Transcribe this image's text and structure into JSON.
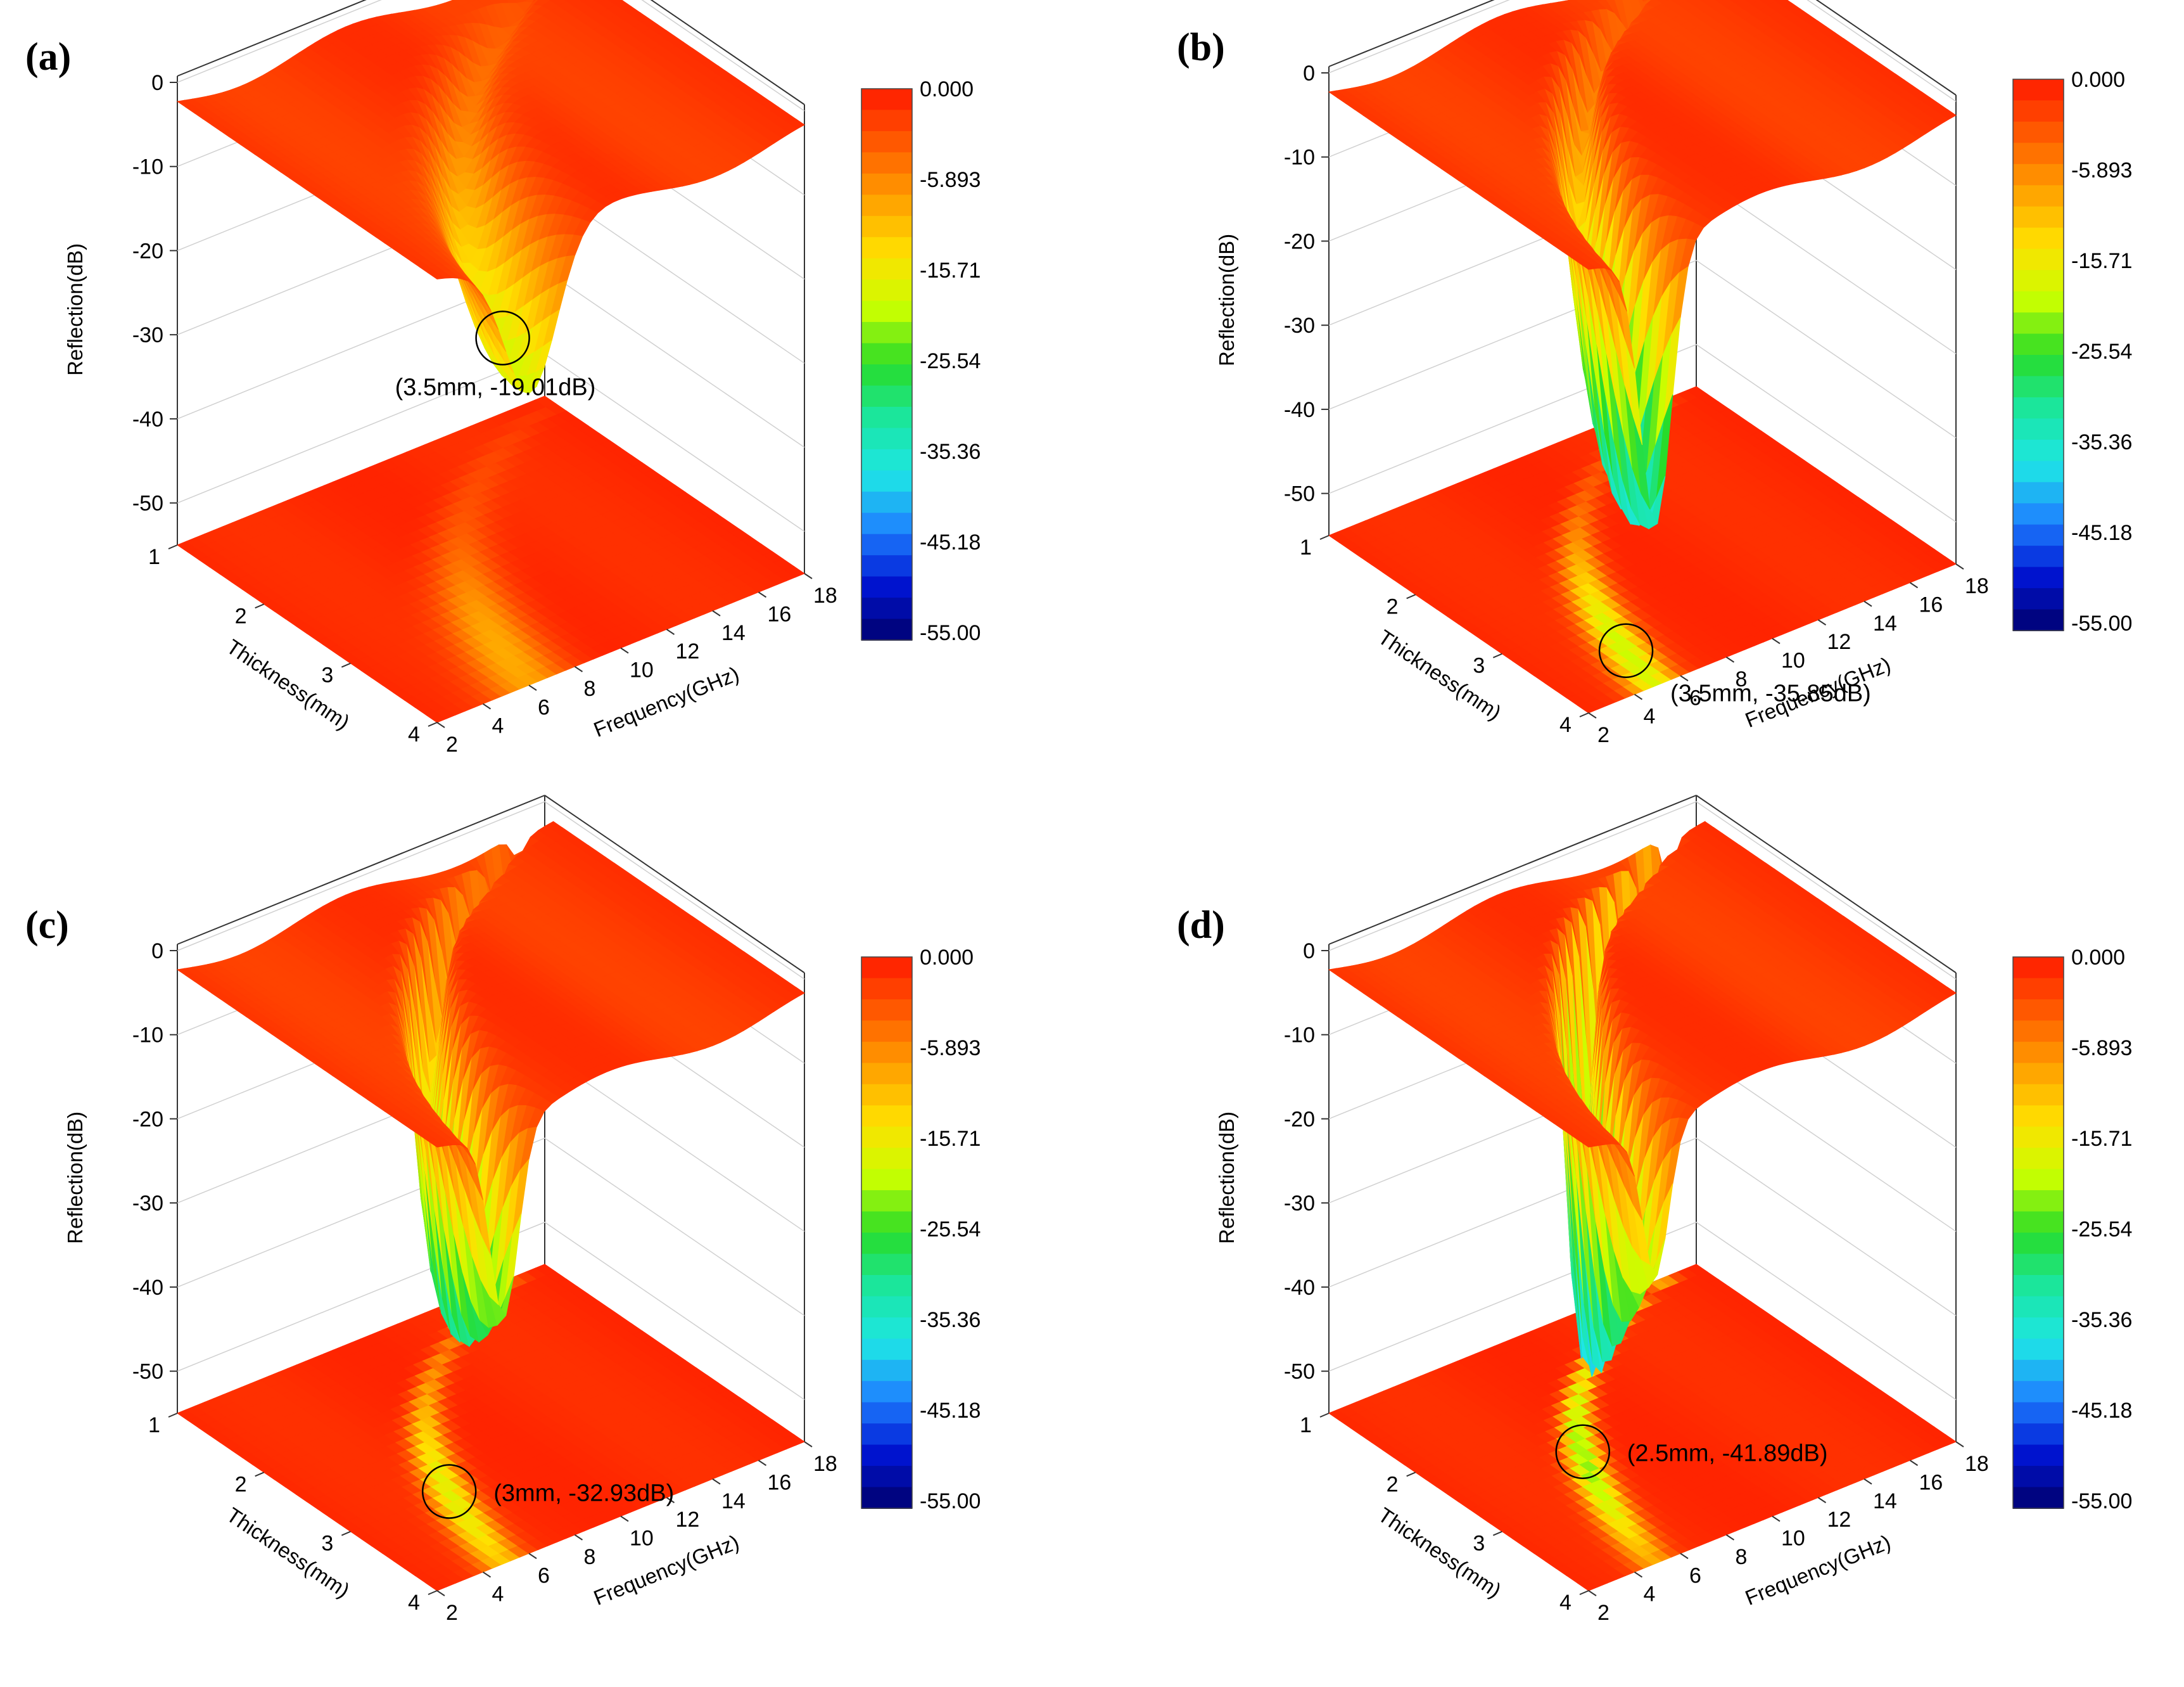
{
  "figure": {
    "panels": [
      {
        "label": "(a)",
        "annotation": "(3.5mm, -19.01dB)",
        "valley_thickness": 3.5,
        "valley_min_db": -19.01,
        "valley_spread": 1.0,
        "secondary_dip": false
      },
      {
        "label": "(b)",
        "annotation": "(3.5mm, -35.85dB)",
        "valley_thickness": 3.5,
        "valley_min_db": -35.85,
        "valley_spread": 0.6,
        "secondary_dip": true
      },
      {
        "label": "(c)",
        "annotation": "(3mm, -32.93dB)",
        "valley_thickness": 3.0,
        "valley_min_db": -32.93,
        "valley_spread": 0.55,
        "secondary_dip": true
      },
      {
        "label": "(d)",
        "annotation": "(2.5mm, -41.89dB)",
        "valley_thickness": 2.5,
        "valley_min_db": -41.89,
        "valley_spread": 0.5,
        "secondary_dip": true
      }
    ]
  },
  "chart_data": {
    "type": "surface3d",
    "title": "",
    "zlabel": "Reflection(dB)",
    "xlabel": "Frequency(GHz)",
    "ylabel": "Thickness(mm)",
    "z_ticks": [
      "0",
      "-10",
      "-20",
      "-30",
      "-40",
      "-50"
    ],
    "x_ticks": [
      "2",
      "4",
      "6",
      "8",
      "10",
      "12",
      "14",
      "16",
      "18"
    ],
    "y_ticks": [
      "1",
      "2",
      "3",
      "4"
    ],
    "zlim": [
      -55,
      0
    ],
    "xlim": [
      2,
      18
    ],
    "ylim": [
      1,
      4
    ],
    "colorbar": {
      "labels": [
        "0.000",
        "-5.893",
        "-15.71",
        "-25.54",
        "-35.36",
        "-45.18",
        "-55.00"
      ],
      "range": [
        -55,
        0
      ],
      "colors": [
        "#ff1a00",
        "#ff5a00",
        "#ffa000",
        "#ffe000",
        "#c8ff00",
        "#28dc28",
        "#1ae6a0",
        "#1ee6e6",
        "#1e82ff",
        "#0014d2",
        "#00006e"
      ]
    }
  }
}
